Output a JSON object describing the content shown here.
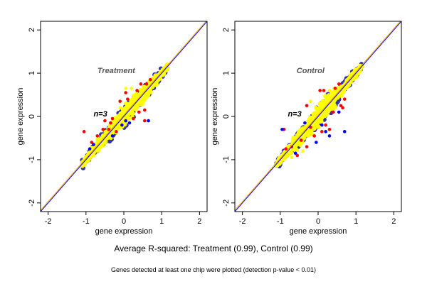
{
  "chart_data": [
    {
      "type": "scatter",
      "title": "Treatment",
      "annotation": "n=3",
      "xlabel": "gene expression",
      "ylabel": "gene expression",
      "xlim": [
        -2.2,
        2.2
      ],
      "ylim": [
        -2.2,
        2.2
      ],
      "xticks": [
        "-2",
        "-1",
        "0",
        "1",
        "2"
      ],
      "yticks": [
        "-2",
        "-1",
        "0",
        "1",
        "2"
      ],
      "colors": {
        "bulk": "#ffff00",
        "red": "#ff0000",
        "blue": "#0000ff",
        "identity": "#0000ff",
        "fit": "#ffa500"
      },
      "bulk_range": [
        -1.1,
        1.15
      ],
      "red_points": [
        [
          -0.85,
          -0.6
        ],
        [
          -0.7,
          -0.45
        ],
        [
          -0.55,
          -0.3
        ],
        [
          -0.4,
          -0.3
        ],
        [
          -0.3,
          -0.05
        ],
        [
          0.1,
          0.4
        ],
        [
          0.35,
          0.6
        ],
        [
          0.45,
          0.75
        ],
        [
          0.6,
          0.75
        ],
        [
          0.7,
          0.85
        ],
        [
          -0.1,
          0.35
        ],
        [
          0.05,
          0.55
        ],
        [
          0.4,
          0.1
        ],
        [
          0.55,
          0.15
        ],
        [
          0.25,
          -0.05
        ],
        [
          -0.2,
          -0.35
        ],
        [
          -0.5,
          -0.1
        ],
        [
          -1.05,
          -0.35
        ],
        [
          0.55,
          -0.1
        ],
        [
          -0.35,
          -0.15
        ]
      ],
      "blue_points": [
        [
          0.05,
          -0.1
        ],
        [
          0.15,
          -0.15
        ],
        [
          -0.05,
          -0.2
        ],
        [
          -0.3,
          -0.45
        ],
        [
          -0.8,
          -0.65
        ],
        [
          0.65,
          -0.1
        ],
        [
          -0.9,
          -0.75
        ]
      ],
      "yellow_outliers": [
        [
          -0.1,
          0.2
        ],
        [
          0.6,
          0.55
        ],
        [
          0.05,
          0.65
        ],
        [
          0.2,
          0.65
        ],
        [
          0.7,
          0.6
        ],
        [
          -0.55,
          -0.45
        ]
      ]
    },
    {
      "type": "scatter",
      "title": "Control",
      "annotation": "n=3",
      "xlabel": "gene expression",
      "ylabel": "gene expression",
      "xlim": [
        -2.2,
        2.2
      ],
      "ylim": [
        -2.2,
        2.2
      ],
      "xticks": [
        "-2",
        "-1",
        "0",
        "1",
        "2"
      ],
      "yticks": [
        "-2",
        "-1",
        "0",
        "1",
        "2"
      ],
      "colors": {
        "bulk": "#ffff00",
        "red": "#ff0000",
        "blue": "#0000ff",
        "identity": "#0000ff",
        "fit": "#ffa500"
      },
      "bulk_range": [
        -1.1,
        1.15
      ],
      "red_points": [
        [
          -0.9,
          -0.3
        ],
        [
          -0.85,
          -0.75
        ],
        [
          -0.7,
          -0.7
        ],
        [
          -0.45,
          -0.55
        ],
        [
          -0.3,
          -0.7
        ],
        [
          -0.2,
          -0.25
        ],
        [
          0.05,
          0.6
        ],
        [
          0.15,
          0.6
        ],
        [
          0.45,
          0.65
        ],
        [
          0.55,
          0.75
        ],
        [
          0.6,
          0.25
        ],
        [
          0.7,
          0.4
        ],
        [
          0.3,
          -0.3
        ],
        [
          0.2,
          -0.2
        ],
        [
          0.1,
          -0.35
        ],
        [
          -0.3,
          0.25
        ],
        [
          -0.55,
          -0.9
        ],
        [
          0.4,
          0.1
        ],
        [
          -0.1,
          -0.45
        ],
        [
          0.65,
          0.2
        ]
      ],
      "blue_points": [
        [
          -0.95,
          -0.3
        ],
        [
          -0.6,
          -0.85
        ],
        [
          -0.35,
          -0.15
        ],
        [
          0.1,
          -0.2
        ],
        [
          0.2,
          -0.35
        ],
        [
          0.55,
          0.1
        ],
        [
          0.7,
          -0.35
        ],
        [
          -0.05,
          -0.6
        ],
        [
          0.3,
          -0.45
        ]
      ],
      "yellow_outliers": [
        [
          -0.2,
          0.35
        ],
        [
          0.3,
          0.6
        ],
        [
          -0.4,
          -0.8
        ],
        [
          0.6,
          0.65
        ],
        [
          -0.7,
          -0.95
        ]
      ]
    }
  ],
  "footer": {
    "summary": "Average R-squared: Treatment (0.99), Control (0.99)",
    "note": "Genes detected at least one chip were plotted (detection p-value < 0.01)"
  }
}
